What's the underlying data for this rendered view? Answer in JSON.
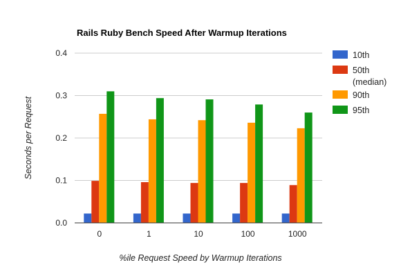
{
  "chart_data": {
    "type": "bar",
    "title": "Rails Ruby Bench Speed After Warmup Iterations",
    "xlabel": "%ile Request Speed by Warmup Iterations",
    "ylabel": "Seconds per Request",
    "categories": [
      "0",
      "1",
      "10",
      "100",
      "1000"
    ],
    "ylim": [
      0,
      0.4
    ],
    "yticks": [
      "0.0",
      "0.1",
      "0.2",
      "0.3",
      "0.4"
    ],
    "legend_position": "right",
    "grid": true,
    "series": [
      {
        "name": "10th",
        "name_lines": [
          "10th"
        ],
        "color": "#3366cc",
        "values": [
          0.022,
          0.022,
          0.022,
          0.022,
          0.022
        ]
      },
      {
        "name": "50th (median)",
        "name_lines": [
          "50th",
          "(median)"
        ],
        "color": "#dc3912",
        "values": [
          0.099,
          0.096,
          0.094,
          0.094,
          0.089
        ]
      },
      {
        "name": "90th",
        "name_lines": [
          "90th"
        ],
        "color": "#ff9900",
        "values": [
          0.257,
          0.244,
          0.242,
          0.236,
          0.223
        ]
      },
      {
        "name": "95th",
        "name_lines": [
          "95th"
        ],
        "color": "#109618",
        "values": [
          0.31,
          0.294,
          0.291,
          0.279,
          0.26
        ]
      }
    ]
  }
}
